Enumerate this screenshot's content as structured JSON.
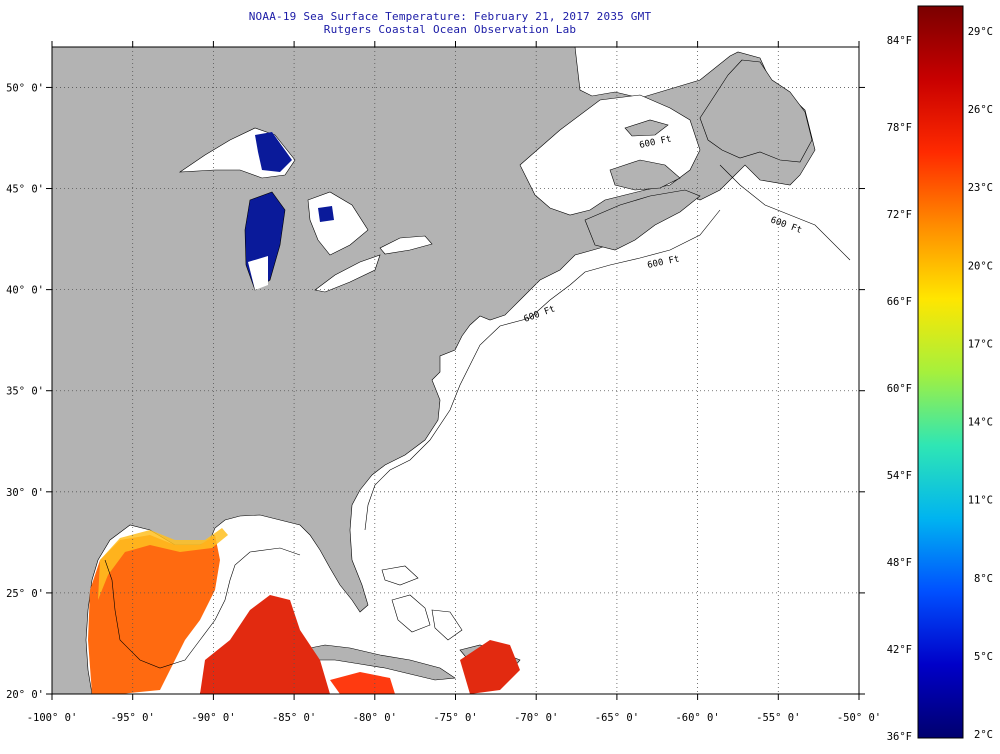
{
  "header": {
    "title": "NOAA-19 Sea Surface Temperature:  February 21, 2017 2035 GMT",
    "subtitle": "Rutgers Coastal Ocean Observation Lab"
  },
  "map": {
    "lon_range": [
      -100,
      -50
    ],
    "lat_range": [
      20,
      52
    ],
    "land_color": "#b3b3b3",
    "ocean_color": "#ffffff",
    "lon_ticks": [
      {
        "value": -100,
        "label": "-100° 0'"
      },
      {
        "value": -95,
        "label": "-95° 0'"
      },
      {
        "value": -90,
        "label": "-90° 0'"
      },
      {
        "value": -85,
        "label": "-85° 0'"
      },
      {
        "value": -80,
        "label": "-80° 0'"
      },
      {
        "value": -75,
        "label": "-75° 0'"
      },
      {
        "value": -70,
        "label": "-70° 0'"
      },
      {
        "value": -65,
        "label": "-65° 0'"
      },
      {
        "value": -60,
        "label": "-60° 0'"
      },
      {
        "value": -55,
        "label": "-55° 0'"
      },
      {
        "value": -50,
        "label": "-50° 0'"
      }
    ],
    "lat_ticks": [
      {
        "value": 50,
        "label": "50° 0'"
      },
      {
        "value": 45,
        "label": "45° 0'"
      },
      {
        "value": 40,
        "label": "40° 0'"
      },
      {
        "value": 35,
        "label": "35° 0'"
      },
      {
        "value": 30,
        "label": "30° 0'"
      },
      {
        "value": 25,
        "label": "25° 0'"
      },
      {
        "value": 20,
        "label": "20° 0'"
      }
    ],
    "isobath_label": "600 Ft"
  },
  "colorbar": {
    "fahrenheit": [
      "84°F",
      "78°F",
      "72°F",
      "66°F",
      "60°F",
      "54°F",
      "48°F",
      "42°F",
      "36°F"
    ],
    "celsius": [
      "29°C",
      "26°C",
      "23°C",
      "20°C",
      "17°C",
      "14°C",
      "11°C",
      "8°C",
      "5°C",
      "2°C"
    ],
    "stops": [
      "#7a0000",
      "#c80000",
      "#ff2a00",
      "#ff8c00",
      "#ffe600",
      "#a6f03c",
      "#2fe6b4",
      "#00b4f0",
      "#0050ff",
      "#0000c8",
      "#00006e"
    ]
  }
}
